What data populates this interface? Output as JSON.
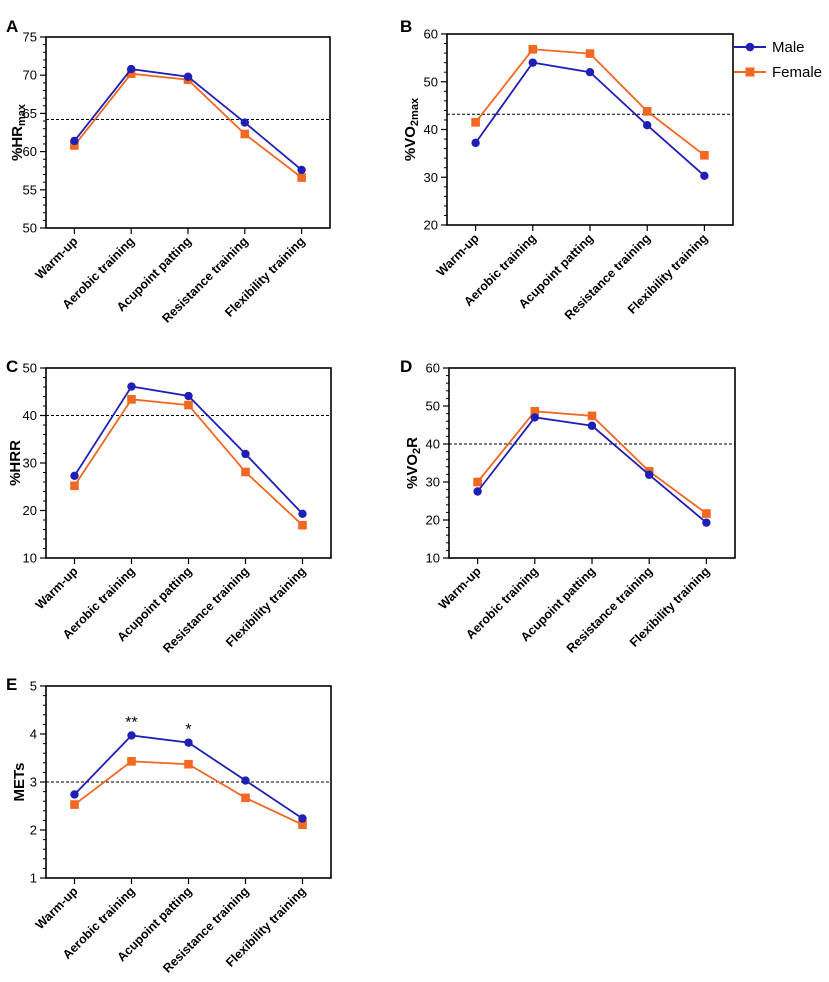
{
  "figure": {
    "series_styles": {
      "Male": {
        "color": "#1f1fb4",
        "marker": "circle"
      },
      "Female": {
        "color": "#f26722",
        "marker": "square"
      }
    },
    "legend": {
      "placement": "top-right",
      "entries": [
        "Male",
        "Female"
      ]
    }
  },
  "chart_data": [
    {
      "panel": "A",
      "type": "line",
      "ylabel": "%HR",
      "ylabel_sub": "max",
      "categories": [
        "Warm-up",
        "Aerobic training",
        "Acupoint patting",
        "Resistance training",
        "Flexibility training"
      ],
      "yticks": [
        "75",
        "70",
        "65",
        "60",
        "55",
        "50"
      ],
      "ylim": [
        50,
        75
      ],
      "ytick_values": [
        50,
        55,
        60,
        65,
        70,
        75
      ],
      "reference_line": 64.2,
      "series": [
        {
          "name": "Male",
          "values": [
            61.4,
            70.8,
            69.8,
            63.8,
            57.6
          ]
        },
        {
          "name": "Female",
          "values": [
            60.8,
            70.2,
            69.4,
            62.3,
            56.6
          ]
        }
      ],
      "annotations": []
    },
    {
      "panel": "B",
      "type": "line",
      "ylabel": "%VO",
      "ylabel_sub": "2max",
      "categories": [
        "Warm-up",
        "Aerobic training",
        "Acupoint patting",
        "Resistance training",
        "Flexibility training"
      ],
      "yticks": [
        "60",
        "50",
        "40",
        "30",
        "20"
      ],
      "ylim": [
        20,
        60
      ],
      "ytick_values": [
        20,
        30,
        40,
        50,
        60
      ],
      "reference_line": 43.2,
      "series": [
        {
          "name": "Male",
          "values": [
            37.2,
            54.0,
            52.0,
            40.9,
            30.3
          ]
        },
        {
          "name": "Female",
          "values": [
            41.5,
            56.8,
            55.9,
            43.8,
            34.6
          ]
        }
      ],
      "annotations": []
    },
    {
      "panel": "C",
      "type": "line",
      "ylabel": "%HRR",
      "ylabel_sub": "",
      "categories": [
        "Warm-up",
        "Aerobic training",
        "Acupoint patting",
        "Resistance training",
        "Flexibility training"
      ],
      "yticks": [
        "50",
        "40",
        "30",
        "20",
        "10"
      ],
      "ylim": [
        10,
        50
      ],
      "ytick_values": [
        10,
        20,
        30,
        40,
        50
      ],
      "reference_line": 40,
      "series": [
        {
          "name": "Male",
          "values": [
            27.3,
            46.1,
            44.1,
            31.9,
            19.3
          ]
        },
        {
          "name": "Female",
          "values": [
            25.2,
            43.4,
            42.2,
            28.1,
            16.9
          ]
        }
      ],
      "annotations": []
    },
    {
      "panel": "D",
      "type": "line",
      "ylabel": "%VO",
      "ylabel_sub": "2",
      "ylabel_tail": "R",
      "categories": [
        "Warm-up",
        "Aerobic training",
        "Acupoint patting",
        "Resistance training",
        "Flexibility training"
      ],
      "yticks": [
        "60",
        "50",
        "40",
        "30",
        "20",
        "10"
      ],
      "ylim": [
        10,
        60
      ],
      "ytick_values": [
        10,
        20,
        30,
        40,
        50,
        60
      ],
      "reference_line": 40,
      "series": [
        {
          "name": "Male",
          "values": [
            27.5,
            47.0,
            44.8,
            31.9,
            19.3
          ]
        },
        {
          "name": "Female",
          "values": [
            30.0,
            48.6,
            47.4,
            32.8,
            21.7
          ]
        }
      ],
      "annotations": []
    },
    {
      "panel": "E",
      "type": "line",
      "ylabel": "METs",
      "ylabel_sub": "",
      "categories": [
        "Warm-up",
        "Aerobic training",
        "Acupoint patting",
        "Resistance training",
        "Flexibility training"
      ],
      "yticks": [
        "5",
        "4",
        "3",
        "2",
        "1"
      ],
      "ylim": [
        1,
        5
      ],
      "ytick_values": [
        1,
        2,
        3,
        4,
        5
      ],
      "reference_line": 3,
      "series": [
        {
          "name": "Male",
          "values": [
            2.74,
            3.97,
            3.82,
            3.03,
            2.24
          ]
        },
        {
          "name": "Female",
          "values": [
            2.53,
            3.43,
            3.37,
            2.67,
            2.11
          ]
        }
      ],
      "annotations": [
        {
          "text": "**",
          "category_index": 1
        },
        {
          "text": "*",
          "category_index": 2
        }
      ]
    }
  ]
}
